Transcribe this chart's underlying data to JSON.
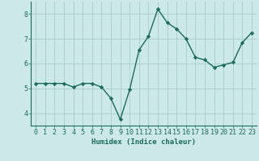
{
  "x": [
    0,
    1,
    2,
    3,
    4,
    5,
    6,
    7,
    8,
    9,
    10,
    11,
    12,
    13,
    14,
    15,
    16,
    17,
    18,
    19,
    20,
    21,
    22,
    23
  ],
  "y": [
    5.2,
    5.2,
    5.2,
    5.2,
    5.05,
    5.2,
    5.2,
    5.05,
    4.6,
    3.75,
    4.95,
    6.55,
    7.1,
    8.2,
    7.65,
    7.4,
    7.0,
    6.25,
    6.15,
    5.85,
    5.95,
    6.05,
    6.85,
    7.25
  ],
  "line_color": "#1a6b5a",
  "marker": "D",
  "marker_size": 2.2,
  "bg_color": "#cce8e8",
  "grid_color": "#aacccc",
  "axis_color": "#1a6b5a",
  "xlabel": "Humidex (Indice chaleur)",
  "xlim": [
    -0.5,
    23.5
  ],
  "ylim": [
    3.5,
    8.5
  ],
  "yticks": [
    4,
    5,
    6,
    7,
    8
  ],
  "xticks": [
    0,
    1,
    2,
    3,
    4,
    5,
    6,
    7,
    8,
    9,
    10,
    11,
    12,
    13,
    14,
    15,
    16,
    17,
    18,
    19,
    20,
    21,
    22,
    23
  ],
  "xlabel_fontsize": 6.5,
  "tick_fontsize": 6,
  "linewidth": 1.0,
  "spine_color": "#1a6b5a"
}
